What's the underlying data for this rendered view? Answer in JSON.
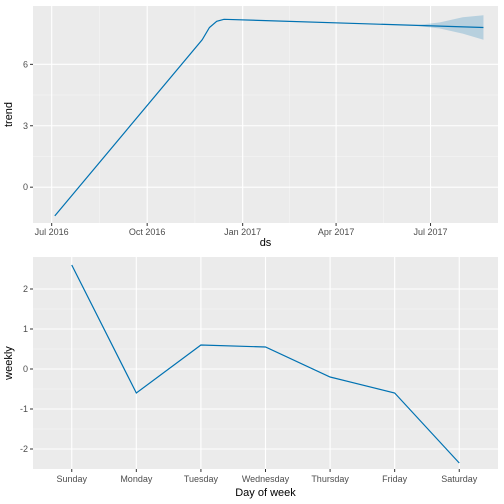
{
  "colors": {
    "panel_bg": "#ebebeb",
    "grid_major": "#ffffff",
    "line": "#0072b2",
    "band": "#0072b2"
  },
  "chart_data": [
    {
      "type": "line",
      "xlabel": "ds",
      "ylabel": "trend",
      "x_ticks": [
        "Jul 2016",
        "Oct 2016",
        "Jan 2017",
        "Apr 2017",
        "Jul 2017"
      ],
      "x_tick_dates": [
        "2016-07-01",
        "2016-10-01",
        "2017-01-01",
        "2017-04-01",
        "2017-07-01"
      ],
      "y_ticks": [
        0,
        3,
        6
      ],
      "xlim": [
        "2016-06-13",
        "2017-09-04"
      ],
      "ylim": [
        -1.75,
        8.85
      ],
      "grid": true,
      "series": [
        {
          "points": [
            [
              "2016-07-04",
              -1.4
            ],
            [
              "2016-11-23",
              7.2
            ],
            [
              "2016-11-30",
              7.8
            ],
            [
              "2016-12-07",
              8.1
            ],
            [
              "2016-12-14",
              8.2
            ],
            [
              "2017-08-21",
              7.8
            ]
          ],
          "uncertainty": [
            [
              "2017-06-15",
              7.9,
              7.9
            ],
            [
              "2017-07-10",
              7.75,
              8.05
            ],
            [
              "2017-08-01",
              7.5,
              8.3
            ],
            [
              "2017-08-21",
              7.2,
              8.4
            ]
          ]
        }
      ]
    },
    {
      "type": "line",
      "xlabel": "Day of week",
      "ylabel": "weekly",
      "categories": [
        "Sunday",
        "Monday",
        "Tuesday",
        "Wednesday",
        "Thursday",
        "Friday",
        "Saturday"
      ],
      "values": [
        2.6,
        -0.6,
        0.6,
        0.55,
        -0.2,
        -0.6,
        -2.35
      ],
      "y_ticks": [
        2,
        1,
        0,
        -1,
        -2
      ],
      "ylim": [
        -2.5,
        2.8
      ],
      "grid": true
    }
  ]
}
